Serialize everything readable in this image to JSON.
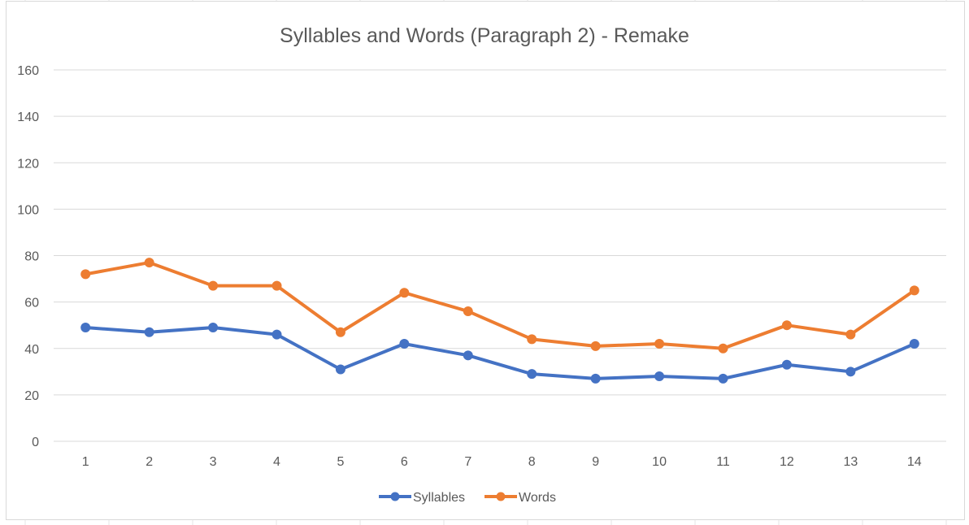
{
  "chart_data": {
    "type": "line",
    "title": "Syllables and Words (Paragraph 2) - Remake",
    "xlabel": "",
    "ylabel": "",
    "categories": [
      "1",
      "2",
      "3",
      "4",
      "5",
      "6",
      "7",
      "8",
      "9",
      "10",
      "11",
      "12",
      "13",
      "14"
    ],
    "ylim": [
      0,
      160
    ],
    "yticks": [
      "0",
      "20",
      "40",
      "60",
      "80",
      "100",
      "120",
      "140",
      "160"
    ],
    "grid": true,
    "legend": "bottom",
    "series": [
      {
        "name": "Syllables",
        "color": "#4472C4",
        "values": [
          49,
          47,
          49,
          46,
          31,
          42,
          37,
          29,
          27,
          28,
          27,
          33,
          30,
          42
        ]
      },
      {
        "name": "Words",
        "color": "#ED7D31",
        "values": [
          72,
          77,
          67,
          67,
          47,
          64,
          56,
          44,
          41,
          42,
          40,
          50,
          46,
          65
        ]
      }
    ]
  }
}
